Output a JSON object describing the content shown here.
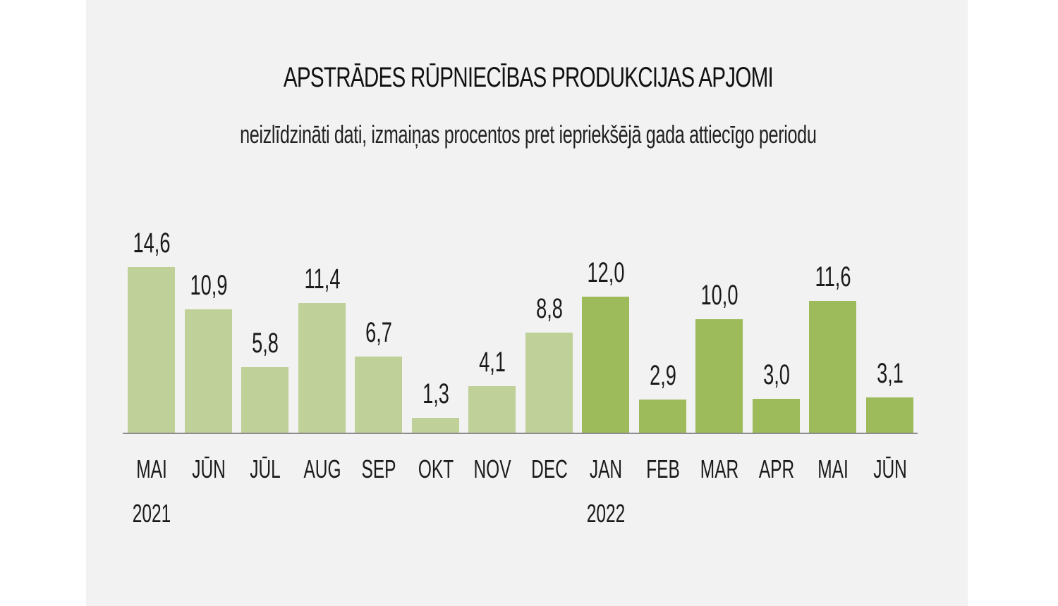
{
  "title": "APSTRĀDES RŪPNIECĪBAS PRODUKCIJAS APJOMI",
  "subtitle": "neizlīdzināti dati, izmaiņas procentos pret iepriekšējā gada attiecīgo periodu",
  "colors": {
    "background": "#f2f2f2",
    "bar_2021": "#bfd198",
    "bar_2022": "#9dbb5a",
    "axis": "#8c8c8c"
  },
  "chart_data": {
    "type": "bar",
    "title": "APSTRĀDES RŪPNIECĪBAS PRODUKCIJAS APJOMI",
    "subtitle": "neizlīdzināti dati, izmaiņas procentos pret iepriekšējā gada attiecīgo periodu",
    "xlabel": "",
    "ylabel": "",
    "categories": [
      "MAI",
      "JŪN",
      "JŪL",
      "AUG",
      "SEP",
      "OKT",
      "NOV",
      "DEC",
      "JAN",
      "FEB",
      "MAR",
      "APR",
      "MAI",
      "JŪN"
    ],
    "year_labels": [
      {
        "index": 0,
        "label": "2021"
      },
      {
        "index": 8,
        "label": "2022"
      }
    ],
    "values": [
      14.6,
      10.9,
      5.8,
      11.4,
      6.7,
      1.3,
      4.1,
      8.8,
      12.0,
      2.9,
      10.0,
      3.0,
      11.6,
      3.1
    ],
    "value_labels": [
      "14,6",
      "10,9",
      "5,8",
      "11,4",
      "6,7",
      "1,3",
      "4,1",
      "8,8",
      "12,0",
      "2,9",
      "10,0",
      "3,0",
      "11,6",
      "3,1"
    ],
    "series_year": [
      2021,
      2021,
      2021,
      2021,
      2021,
      2021,
      2021,
      2021,
      2022,
      2022,
      2022,
      2022,
      2022,
      2022
    ],
    "ylim": [
      0,
      15
    ],
    "grid": false,
    "legend": "none"
  }
}
